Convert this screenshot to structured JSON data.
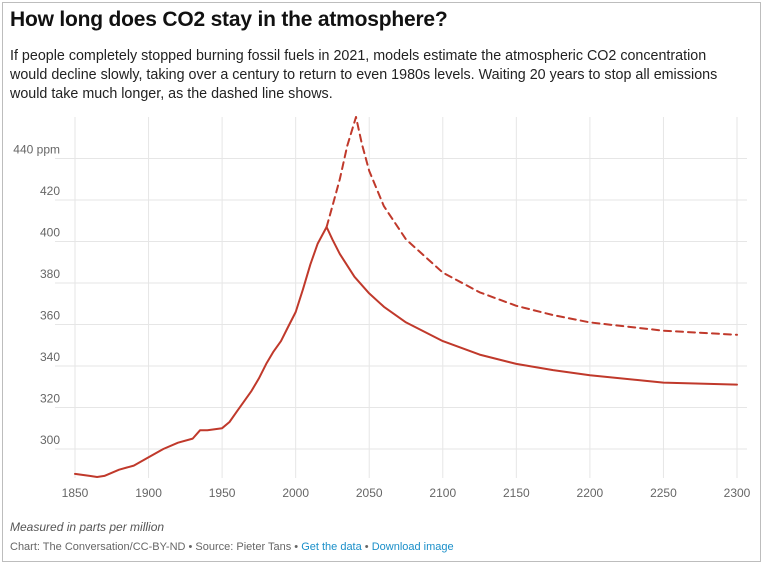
{
  "header": {
    "title": "How long does CO2 stay in the atmosphere?",
    "subtitle": "If people completely stopped burning fossil fuels in 2021, models estimate the atmospheric CO2 concentration would decline slowly, taking over a century to return to even 1980s levels. Waiting 20 years to stop all emissions would take much longer, as the dashed line shows."
  },
  "footer": {
    "note": "Measured in parts per million",
    "credit": "Chart: The Conversation/CC-BY-ND • Source: Pieter Tans • ",
    "get_data": "Get the data",
    "separator": " • ",
    "download": "Download image"
  },
  "colors": {
    "line": "#c0392b",
    "grid": "#e6e6e6",
    "tick_text": "#666666",
    "link": "#1a8fc9"
  },
  "chart_data": {
    "type": "line",
    "title": "How long does CO2 stay in the atmosphere?",
    "xlabel": "",
    "ylabel": "Measured in parts per million",
    "xlim": [
      1850,
      2300
    ],
    "ylim": [
      286,
      460
    ],
    "grid": true,
    "x_ticks": [
      1850,
      1900,
      1950,
      2000,
      2050,
      2100,
      2150,
      2200,
      2250,
      2300
    ],
    "y_ticks": [
      300,
      320,
      340,
      360,
      380,
      400,
      420,
      440
    ],
    "y_tick_labels": [
      "300",
      "320",
      "340",
      "360",
      "380",
      "400",
      "420",
      "440 ppm"
    ],
    "series": [
      {
        "style": "solid",
        "x": [
          1850,
          1860,
          1865,
          1870,
          1880,
          1890,
          1900,
          1910,
          1920,
          1930,
          1935,
          1940,
          1950,
          1955,
          1960,
          1965,
          1970,
          1975,
          1980,
          1985,
          1990,
          1995,
          2000,
          2005,
          2010,
          2015,
          2021,
          2025,
          2030,
          2040,
          2050,
          2060,
          2075,
          2100,
          2125,
          2150,
          2175,
          2200,
          2250,
          2300
        ],
        "y": [
          288,
          287,
          286.5,
          287,
          290,
          292,
          296,
          300,
          303,
          305,
          309,
          309,
          310,
          313,
          318,
          323,
          328,
          334,
          341,
          347,
          352,
          359,
          366,
          377,
          389,
          399,
          407,
          401,
          394,
          383,
          375,
          368.5,
          361,
          352,
          345.5,
          341,
          338,
          335.5,
          332,
          331
        ]
      },
      {
        "style": "dashed",
        "x": [
          2021,
          2025,
          2030,
          2035,
          2041,
          2045,
          2050,
          2060,
          2075,
          2100,
          2125,
          2150,
          2175,
          2200,
          2250,
          2300
        ],
        "y": [
          407,
          417,
          430,
          446,
          460,
          447,
          434,
          417,
          401,
          385,
          375.5,
          369,
          364.5,
          361,
          357,
          355
        ]
      }
    ]
  }
}
